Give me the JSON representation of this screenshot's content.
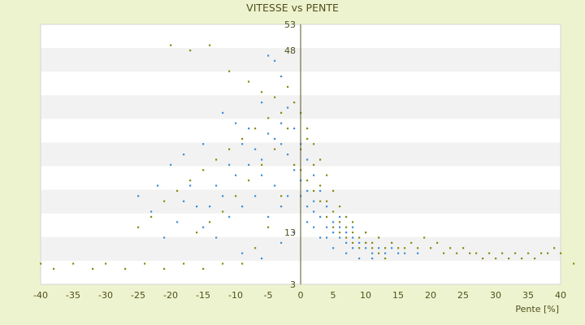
{
  "chart_data": {
    "type": "scatter",
    "title": "VITESSE vs PENTE",
    "xlabel": "Pente [%]",
    "ylabel": "",
    "xlim": [
      -40,
      40
    ],
    "ylim": [
      3,
      53
    ],
    "x_ticks": [
      -40,
      -35,
      -30,
      -25,
      -20,
      -15,
      -10,
      -5,
      0,
      5,
      10,
      15,
      20,
      25,
      30,
      35,
      40
    ],
    "y_ticks_visible": [
      3,
      13,
      48,
      53
    ],
    "grid": "horizontal alternating bands",
    "series": [
      {
        "color": "#3a8fd8",
        "marker": "dot",
        "points": [
          [
            -5,
            47
          ],
          [
            -4,
            46
          ],
          [
            -3,
            43
          ],
          [
            -6,
            38
          ],
          [
            -12,
            36
          ],
          [
            -10,
            34
          ],
          [
            -15,
            30
          ],
          [
            -18,
            28
          ],
          [
            -20,
            26
          ],
          [
            -22,
            22
          ],
          [
            -25,
            20
          ],
          [
            -19,
            15
          ],
          [
            -16,
            18
          ],
          [
            -13,
            22
          ],
          [
            -11,
            26
          ],
          [
            -9,
            30
          ],
          [
            -8,
            33
          ],
          [
            -7,
            29
          ],
          [
            -6,
            27
          ],
          [
            -4,
            31
          ],
          [
            -3,
            34
          ],
          [
            -2,
            37
          ],
          [
            -1,
            33
          ],
          [
            0,
            30
          ],
          [
            1,
            27
          ],
          [
            2,
            24
          ],
          [
            3,
            21
          ],
          [
            4,
            18
          ],
          [
            5,
            15
          ],
          [
            6,
            14
          ],
          [
            7,
            13
          ],
          [
            8,
            12
          ],
          [
            10,
            11
          ],
          [
            12,
            10
          ],
          [
            15,
            9
          ],
          [
            18,
            9
          ],
          [
            3,
            16
          ],
          [
            4,
            14
          ],
          [
            5,
            13
          ],
          [
            6,
            12
          ],
          [
            7,
            11
          ],
          [
            8,
            10
          ],
          [
            9,
            11
          ],
          [
            10,
            10
          ],
          [
            11,
            9
          ],
          [
            13,
            9
          ],
          [
            14,
            10
          ],
          [
            16,
            9
          ],
          [
            2,
            19
          ],
          [
            1,
            21
          ],
          [
            0,
            23
          ],
          [
            -1,
            25
          ],
          [
            -2,
            28
          ],
          [
            -3,
            30
          ],
          [
            -5,
            32
          ],
          [
            -8,
            26
          ],
          [
            -10,
            24
          ],
          [
            -12,
            20
          ],
          [
            -14,
            18
          ],
          [
            -17,
            22
          ],
          [
            -21,
            12
          ],
          [
            -23,
            17
          ],
          [
            -9,
            9
          ],
          [
            -6,
            8
          ],
          [
            -3,
            11
          ],
          [
            -1,
            13
          ],
          [
            1,
            15
          ],
          [
            3,
            12
          ],
          [
            5,
            10
          ],
          [
            7,
            9
          ],
          [
            9,
            8
          ],
          [
            11,
            8
          ],
          [
            6,
            16
          ],
          [
            8,
            14
          ],
          [
            4,
            12
          ],
          [
            2,
            14
          ],
          [
            -4,
            22
          ],
          [
            -2,
            20
          ],
          [
            -6,
            24
          ],
          [
            -7,
            20
          ],
          [
            -11,
            16
          ],
          [
            -13,
            12
          ],
          [
            -15,
            14
          ],
          [
            -18,
            19
          ],
          [
            -9,
            18
          ],
          [
            -5,
            16
          ],
          [
            -3,
            18
          ],
          [
            0,
            20
          ],
          [
            1,
            18
          ],
          [
            2,
            17
          ],
          [
            12,
            12
          ],
          [
            14,
            11
          ],
          [
            10,
            13
          ]
        ]
      },
      {
        "color": "#8a8a10",
        "marker": "dot",
        "points": [
          [
            -20,
            49
          ],
          [
            -17,
            48
          ],
          [
            -14,
            49
          ],
          [
            -11,
            44
          ],
          [
            -8,
            42
          ],
          [
            -6,
            40
          ],
          [
            -4,
            39
          ],
          [
            -2,
            41
          ],
          [
            -1,
            38
          ],
          [
            0,
            36
          ],
          [
            1,
            33
          ],
          [
            2,
            30
          ],
          [
            3,
            27
          ],
          [
            4,
            24
          ],
          [
            5,
            21
          ],
          [
            6,
            18
          ],
          [
            7,
            16
          ],
          [
            8,
            15
          ],
          [
            10,
            13
          ],
          [
            12,
            12
          ],
          [
            14,
            11
          ],
          [
            16,
            10
          ],
          [
            18,
            10
          ],
          [
            20,
            10
          ],
          [
            22,
            9
          ],
          [
            24,
            9
          ],
          [
            26,
            9
          ],
          [
            28,
            8
          ],
          [
            30,
            8
          ],
          [
            32,
            8
          ],
          [
            34,
            8
          ],
          [
            36,
            8
          ],
          [
            38,
            9
          ],
          [
            40,
            9
          ],
          [
            42,
            7
          ],
          [
            -40,
            7
          ],
          [
            -38,
            6
          ],
          [
            -35,
            7
          ],
          [
            -32,
            6
          ],
          [
            -30,
            7
          ],
          [
            -27,
            6
          ],
          [
            -24,
            7
          ],
          [
            -21,
            6
          ],
          [
            -18,
            7
          ],
          [
            -15,
            6
          ],
          [
            -12,
            7
          ],
          [
            -9,
            7
          ],
          [
            -7,
            10
          ],
          [
            -5,
            14
          ],
          [
            -3,
            20
          ],
          [
            -1,
            26
          ],
          [
            0,
            29
          ],
          [
            1,
            31
          ],
          [
            2,
            26
          ],
          [
            3,
            22
          ],
          [
            4,
            19
          ],
          [
            5,
            17
          ],
          [
            6,
            15
          ],
          [
            7,
            14
          ],
          [
            8,
            13
          ],
          [
            9,
            12
          ],
          [
            11,
            11
          ],
          [
            13,
            10
          ],
          [
            15,
            10
          ],
          [
            17,
            11
          ],
          [
            19,
            12
          ],
          [
            21,
            11
          ],
          [
            23,
            10
          ],
          [
            25,
            10
          ],
          [
            27,
            9
          ],
          [
            29,
            9
          ],
          [
            31,
            9
          ],
          [
            33,
            9
          ],
          [
            35,
            9
          ],
          [
            37,
            9
          ],
          [
            39,
            10
          ],
          [
            -3,
            36
          ],
          [
            -5,
            35
          ],
          [
            -7,
            33
          ],
          [
            -9,
            31
          ],
          [
            -11,
            29
          ],
          [
            -13,
            27
          ],
          [
            -15,
            25
          ],
          [
            -17,
            23
          ],
          [
            -19,
            21
          ],
          [
            -21,
            19
          ],
          [
            -23,
            16
          ],
          [
            -25,
            14
          ],
          [
            -2,
            33
          ],
          [
            -4,
            29
          ],
          [
            -6,
            26
          ],
          [
            -8,
            23
          ],
          [
            -10,
            20
          ],
          [
            -12,
            17
          ],
          [
            -14,
            15
          ],
          [
            -16,
            13
          ],
          [
            0,
            25
          ],
          [
            1,
            23
          ],
          [
            2,
            21
          ],
          [
            3,
            19
          ],
          [
            4,
            16
          ],
          [
            5,
            14
          ],
          [
            6,
            13
          ],
          [
            7,
            12
          ],
          [
            8,
            11
          ],
          [
            9,
            10
          ],
          [
            10,
            11
          ],
          [
            11,
            10
          ],
          [
            12,
            9
          ],
          [
            13,
            8
          ]
        ]
      }
    ]
  }
}
